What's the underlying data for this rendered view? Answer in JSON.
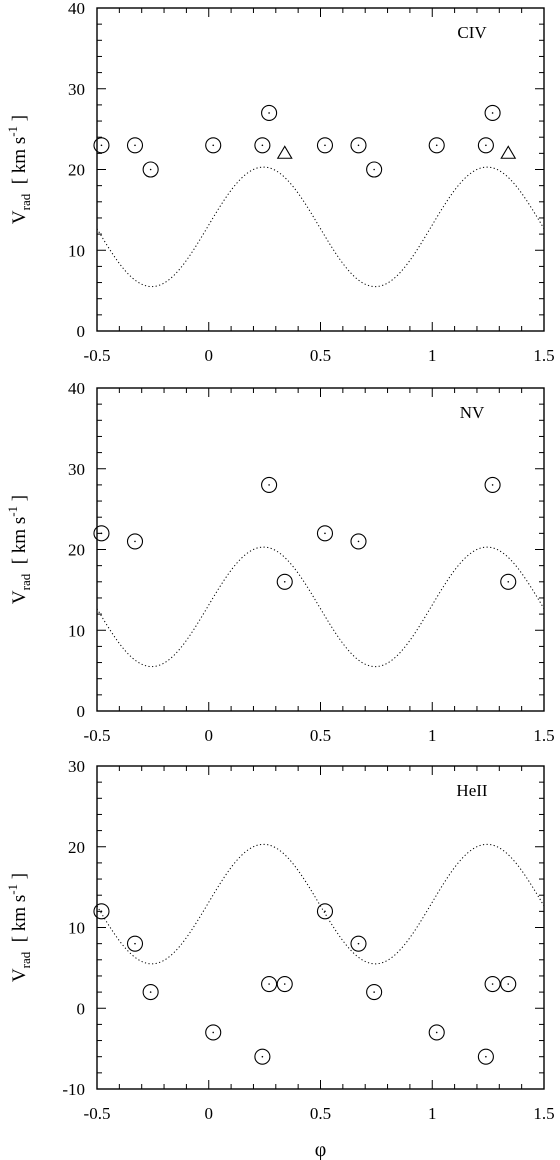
{
  "chart_data": [
    {
      "type": "scatter",
      "title": "CIV",
      "xlabel": "",
      "ylabel": "V_rad  [ km s^-1 ]",
      "xlim": [
        -0.5,
        1.5
      ],
      "ylim": [
        0,
        40
      ],
      "xticks": [
        -0.5,
        0,
        0.5,
        1,
        1.5
      ],
      "xtick_labels": [
        "-0.5",
        "0",
        "0.5",
        "1",
        "1.5"
      ],
      "yticks": [
        0,
        10,
        20,
        30,
        40
      ],
      "ytick_labels": [
        "0",
        "10",
        "20",
        "30",
        "40"
      ],
      "grid": false,
      "series": [
        {
          "marker": "circle",
          "x": [
            -0.48,
            -0.33,
            -0.26,
            0.02,
            0.24,
            0.27,
            0.52,
            0.67,
            0.74,
            1.02,
            1.24,
            1.27
          ],
          "y": [
            23,
            23,
            20,
            23,
            23,
            27,
            23,
            23,
            20,
            23,
            23,
            27
          ]
        },
        {
          "marker": "triangle",
          "x": [
            0.34,
            1.34
          ],
          "y": [
            22,
            22
          ]
        }
      ],
      "model_curve": {
        "style": "dotted",
        "mean": 12.9,
        "amplitude": 7.4,
        "phase_of_max": 0.245
      }
    },
    {
      "type": "scatter",
      "title": "NV",
      "xlabel": "",
      "ylabel": "V_rad  [ km s^-1 ]",
      "xlim": [
        -0.5,
        1.5
      ],
      "ylim": [
        0,
        40
      ],
      "xticks": [
        -0.5,
        0,
        0.5,
        1,
        1.5
      ],
      "xtick_labels": [
        "-0.5",
        "0",
        "0.5",
        "1",
        "1.5"
      ],
      "yticks": [
        0,
        10,
        20,
        30,
        40
      ],
      "ytick_labels": [
        "0",
        "10",
        "20",
        "30",
        "40"
      ],
      "grid": false,
      "series": [
        {
          "marker": "circle",
          "x": [
            -0.48,
            -0.33,
            0.27,
            0.34,
            0.52,
            0.67,
            1.27,
            1.34
          ],
          "y": [
            22,
            21,
            28,
            16,
            22,
            21,
            28,
            16
          ]
        }
      ],
      "model_curve": {
        "style": "dotted",
        "mean": 12.9,
        "amplitude": 7.4,
        "phase_of_max": 0.245
      }
    },
    {
      "type": "scatter",
      "title": "HeII",
      "xlabel": "φ",
      "ylabel": "V_rad  [ km s^-1 ]",
      "xlim": [
        -0.5,
        1.5
      ],
      "ylim": [
        -10,
        30
      ],
      "xticks": [
        -0.5,
        0,
        0.5,
        1,
        1.5
      ],
      "xtick_labels": [
        "-0.5",
        "0",
        "0.5",
        "1",
        "1.5"
      ],
      "yticks": [
        -10,
        0,
        10,
        20,
        30
      ],
      "ytick_labels": [
        "-10",
        "0",
        "10",
        "20",
        "30"
      ],
      "grid": false,
      "series": [
        {
          "marker": "circle",
          "x": [
            -0.48,
            -0.33,
            -0.26,
            0.02,
            0.24,
            0.27,
            0.34,
            0.52,
            0.67,
            0.74,
            1.02,
            1.24,
            1.27,
            1.34
          ],
          "y": [
            12,
            8,
            2,
            -3,
            -6,
            3,
            3,
            12,
            8,
            2,
            -3,
            -6,
            3,
            3
          ]
        }
      ],
      "model_curve": {
        "style": "dotted",
        "mean": 12.9,
        "amplitude": 7.4,
        "phase_of_max": 0.245
      }
    }
  ]
}
